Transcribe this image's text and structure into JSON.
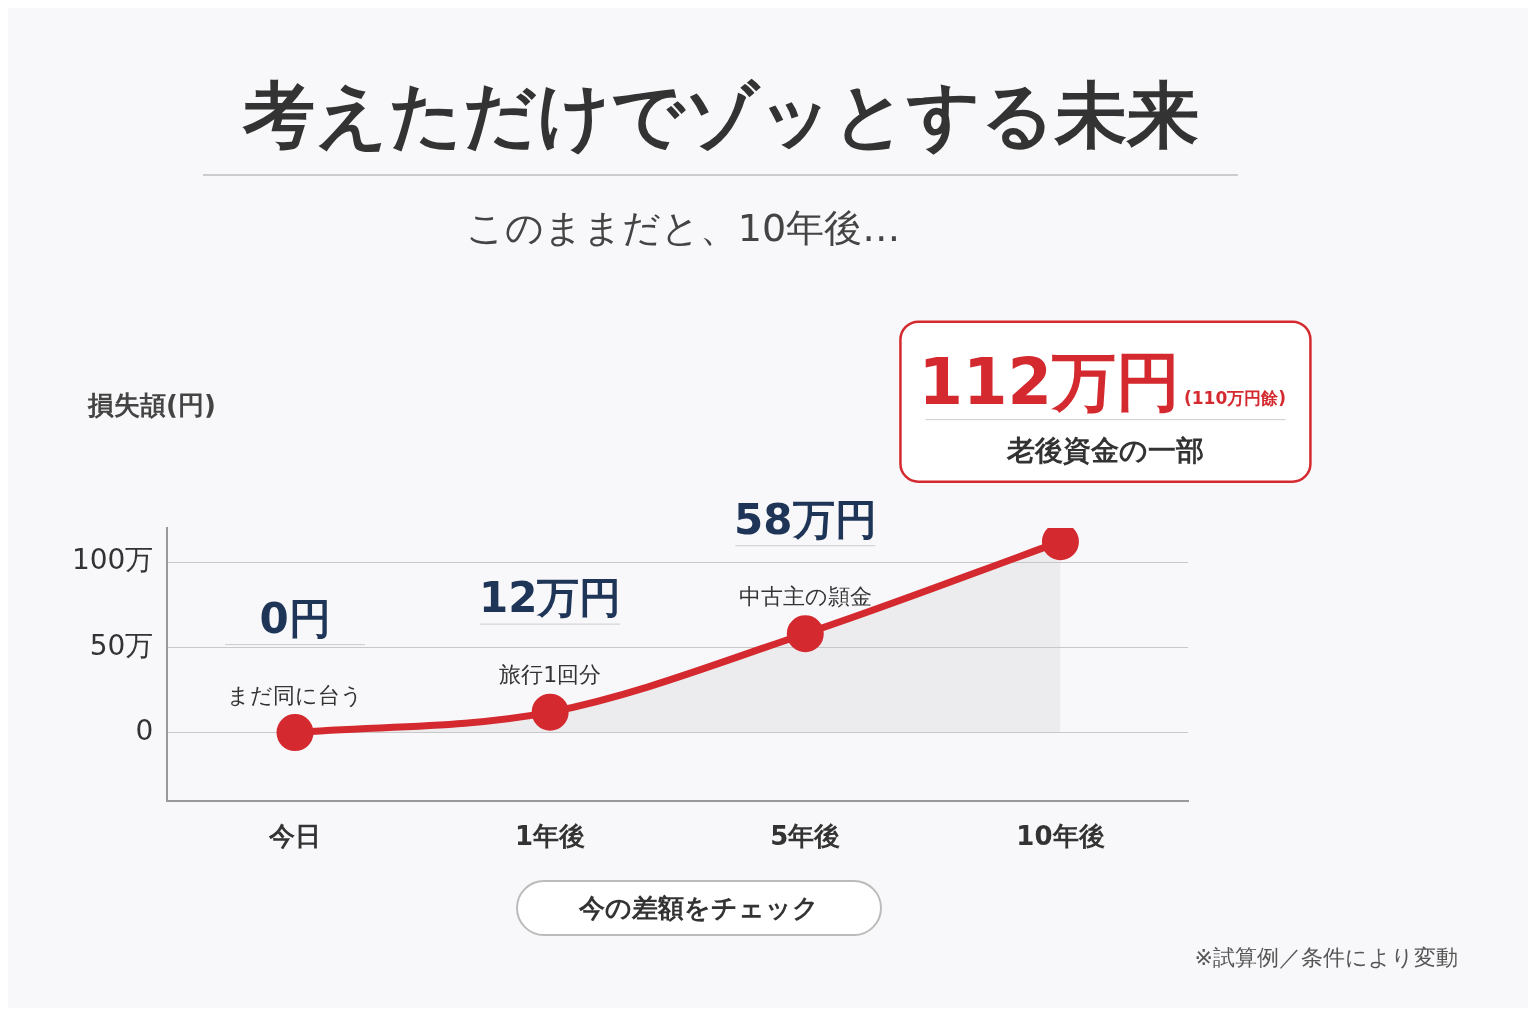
{
  "chart_data": {
    "type": "area",
    "title": "考えただけでゾッとする未来",
    "subtitle": "このままだと、10年後…",
    "ylabel": "損失頡(円)",
    "categories": [
      "今日",
      "1年後",
      "5年後",
      "10年後"
    ],
    "series": [
      {
        "color": "#d42a2f",
        "values": [
          0,
          12,
          58,
          112
        ]
      }
    ],
    "value_labels": [
      "0円",
      "12万円",
      "58万円",
      "112万円"
    ],
    "ylim": [
      -40,
      120
    ],
    "yticks": [
      {
        "value": 0,
        "label": "0"
      },
      {
        "value": 50,
        "label": "50万"
      },
      {
        "value": 100,
        "label": "100万"
      }
    ],
    "grid": "y",
    "legend": false,
    "marker": "circle",
    "line_style": "solid",
    "annotations": [
      {
        "text": "まだ同に台う",
        "x": "今日",
        "y": 0
      },
      {
        "text": "旅行1回分",
        "x": "1年後",
        "y": 12
      },
      {
        "text": "中古主の頴金",
        "x": "5年後",
        "y": 58
      },
      "(110万円餘)",
      "老後資金の一部",
      "今の差額をチェック",
      "※試算例／条件により変動"
    ]
  }
}
